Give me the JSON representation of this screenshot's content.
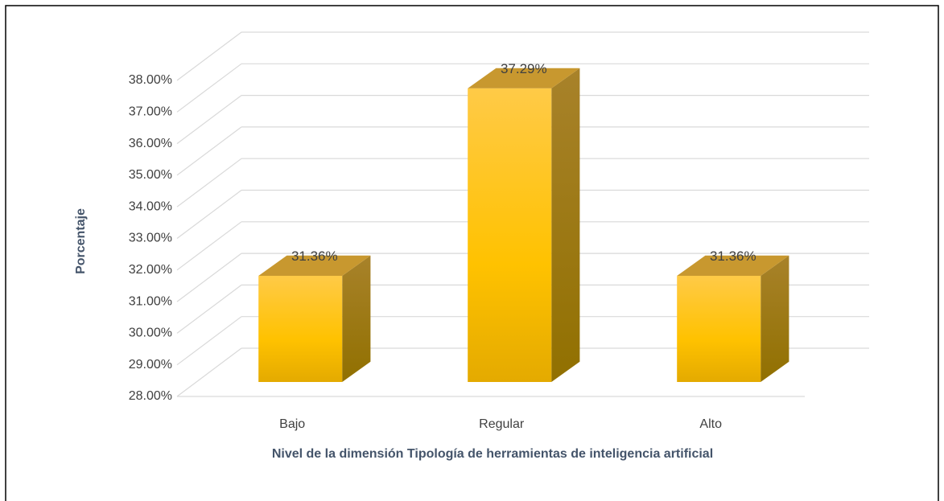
{
  "chart_data": {
    "type": "bar3d",
    "categories": [
      "Bajo",
      "Regular",
      "Alto"
    ],
    "values": [
      31.36,
      37.29,
      31.36
    ],
    "value_labels": [
      "31.36%",
      "37.29%",
      "31.36%"
    ],
    "color": "#ffc000",
    "ylabel": "Porcentaje",
    "xlabel": "Nivel de la dimensión Tipología de herramientas de inteligencia artificial",
    "ylim": [
      28,
      38
    ],
    "yticks": [
      {
        "value": 28,
        "label": "28.00%"
      },
      {
        "value": 29,
        "label": "29.00%"
      },
      {
        "value": 30,
        "label": "30.00%"
      },
      {
        "value": 31,
        "label": "31.00%"
      },
      {
        "value": 32,
        "label": "32.00%"
      },
      {
        "value": 33,
        "label": "33.00%"
      },
      {
        "value": 34,
        "label": "34.00%"
      },
      {
        "value": 35,
        "label": "35.00%"
      },
      {
        "value": 36,
        "label": "36.00%"
      },
      {
        "value": 37,
        "label": "37.00%"
      },
      {
        "value": 38,
        "label": "38.00%"
      }
    ],
    "grid": true
  }
}
